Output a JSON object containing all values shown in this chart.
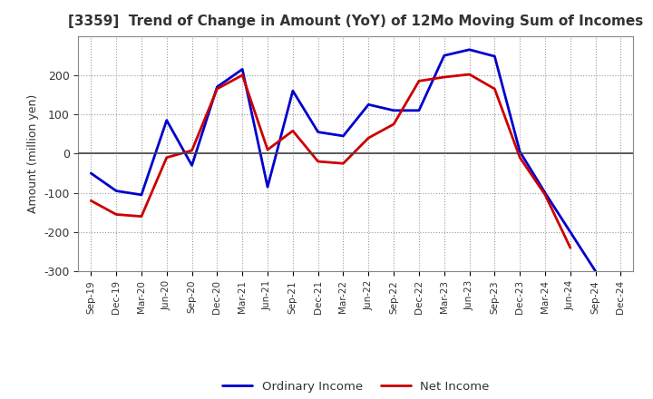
{
  "title": "[3359]  Trend of Change in Amount (YoY) of 12Mo Moving Sum of Incomes",
  "ylabel": "Amount (million yen)",
  "x_labels": [
    "Sep-19",
    "Dec-19",
    "Mar-20",
    "Jun-20",
    "Sep-20",
    "Dec-20",
    "Mar-21",
    "Jun-21",
    "Sep-21",
    "Dec-21",
    "Mar-22",
    "Jun-22",
    "Sep-22",
    "Dec-22",
    "Mar-23",
    "Jun-23",
    "Sep-23",
    "Dec-23",
    "Mar-24",
    "Jun-24",
    "Sep-24",
    "Dec-24"
  ],
  "ordinary_income": [
    -50,
    -95,
    -105,
    85,
    -30,
    170,
    215,
    -85,
    160,
    55,
    45,
    125,
    110,
    110,
    250,
    265,
    248,
    5,
    -100,
    -200,
    -300,
    null
  ],
  "net_income": [
    -120,
    -155,
    -160,
    -10,
    8,
    165,
    200,
    10,
    58,
    -20,
    -25,
    40,
    75,
    185,
    195,
    202,
    165,
    -10,
    -105,
    -240,
    null,
    null
  ],
  "ordinary_income_color": "#0000cc",
  "net_income_color": "#cc0000",
  "ylim": [
    -300,
    300
  ],
  "yticks": [
    -300,
    -200,
    -100,
    0,
    100,
    200
  ],
  "background_color": "#ffffff",
  "grid_color": "#999999",
  "legend_labels": [
    "Ordinary Income",
    "Net Income"
  ],
  "line_width": 2.0,
  "title_color": "#333333",
  "tick_color": "#333333"
}
